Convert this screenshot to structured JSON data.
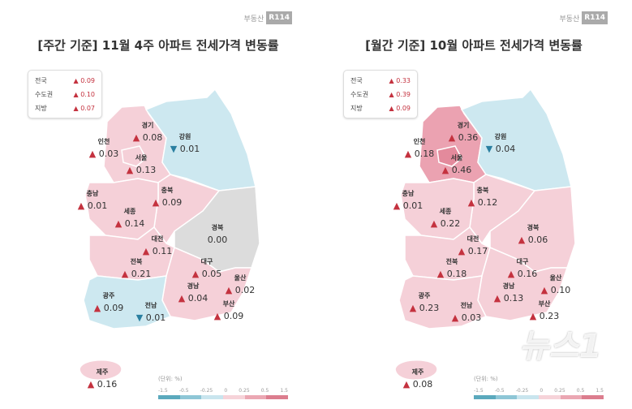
{
  "logo_text": "부동산",
  "logo_mark": "R114",
  "watermark": "뉴스1",
  "scale": {
    "unit": "(단위: %)",
    "ticks": [
      "-1.5",
      "-0.5",
      "-0.25",
      "0",
      "0.25",
      "0.5",
      "1.5"
    ],
    "colors": [
      "#5ba9bd",
      "#8ec6d6",
      "#c9e5ee",
      "#f6d3d9",
      "#eba7b3",
      "#dc7d8e"
    ]
  },
  "panels": [
    {
      "title": "[주간 기준] 11월 4주 아파트 전세가격 변동률",
      "summary": [
        {
          "name": "전국",
          "dir": "up",
          "value": "0.09"
        },
        {
          "name": "수도권",
          "dir": "up",
          "value": "0.10"
        },
        {
          "name": "지방",
          "dir": "up",
          "value": "0.07"
        }
      ],
      "regions": [
        {
          "name": "경기",
          "dir": "up",
          "value": "0.08"
        },
        {
          "name": "인천",
          "dir": "up",
          "value": "0.03"
        },
        {
          "name": "서울",
          "dir": "up",
          "value": "0.13"
        },
        {
          "name": "강원",
          "dir": "down",
          "value": "0.01"
        },
        {
          "name": "충남",
          "dir": "up",
          "value": "0.01"
        },
        {
          "name": "충북",
          "dir": "up",
          "value": "0.09"
        },
        {
          "name": "세종",
          "dir": "up",
          "value": "0.14"
        },
        {
          "name": "대전",
          "dir": "up",
          "value": "0.11"
        },
        {
          "name": "경북",
          "dir": "none",
          "value": "0.00"
        },
        {
          "name": "전북",
          "dir": "up",
          "value": "0.21"
        },
        {
          "name": "대구",
          "dir": "up",
          "value": "0.05"
        },
        {
          "name": "울산",
          "dir": "up",
          "value": "0.02"
        },
        {
          "name": "경남",
          "dir": "up",
          "value": "0.04"
        },
        {
          "name": "부산",
          "dir": "up",
          "value": "0.09"
        },
        {
          "name": "광주",
          "dir": "up",
          "value": "0.09"
        },
        {
          "name": "전남",
          "dir": "down",
          "value": "0.01"
        },
        {
          "name": "제주",
          "dir": "up",
          "value": "0.16"
        }
      ],
      "fills": {
        "capital": "#f5d0d8",
        "seoul": "#f5d0d8",
        "gangwon": "#cde8f0",
        "chungbuk": "#f5d0d8",
        "gyeongbuk": "#dcdcdc",
        "chungnam": "#f5d0d8",
        "jeonbuk": "#f5d0d8",
        "gyeongnam": "#f5d0d8",
        "jeonnam": "#cde8f0",
        "jeju": "#f5d0d8"
      }
    },
    {
      "title": "[월간 기준] 10월 아파트 전세가격 변동률",
      "summary": [
        {
          "name": "전국",
          "dir": "up",
          "value": "0.33"
        },
        {
          "name": "수도권",
          "dir": "up",
          "value": "0.39"
        },
        {
          "name": "지방",
          "dir": "up",
          "value": "0.09"
        }
      ],
      "regions": [
        {
          "name": "경기",
          "dir": "up",
          "value": "0.36"
        },
        {
          "name": "인천",
          "dir": "up",
          "value": "0.18"
        },
        {
          "name": "서울",
          "dir": "up",
          "value": "0.46"
        },
        {
          "name": "강원",
          "dir": "down",
          "value": "0.04"
        },
        {
          "name": "충남",
          "dir": "up",
          "value": "0.01"
        },
        {
          "name": "충북",
          "dir": "up",
          "value": "0.12"
        },
        {
          "name": "세종",
          "dir": "up",
          "value": "0.22"
        },
        {
          "name": "대전",
          "dir": "up",
          "value": "0.17"
        },
        {
          "name": "경북",
          "dir": "up",
          "value": "0.06"
        },
        {
          "name": "전북",
          "dir": "up",
          "value": "0.18"
        },
        {
          "name": "대구",
          "dir": "up",
          "value": "0.16"
        },
        {
          "name": "울산",
          "dir": "up",
          "value": "0.10"
        },
        {
          "name": "경남",
          "dir": "up",
          "value": "0.13"
        },
        {
          "name": "부산",
          "dir": "up",
          "value": "0.23"
        },
        {
          "name": "광주",
          "dir": "up",
          "value": "0.23"
        },
        {
          "name": "전남",
          "dir": "up",
          "value": "0.03"
        },
        {
          "name": "제주",
          "dir": "up",
          "value": "0.08"
        }
      ],
      "fills": {
        "capital": "#eba2b1",
        "seoul": "#e38a9c",
        "gangwon": "#cde8f0",
        "chungbuk": "#f5d0d8",
        "gyeongbuk": "#f5d0d8",
        "chungnam": "#f5d0d8",
        "jeonbuk": "#f5d0d8",
        "gyeongnam": "#f5d0d8",
        "jeonnam": "#f5d0d8",
        "jeju": "#f5d0d8"
      }
    }
  ]
}
